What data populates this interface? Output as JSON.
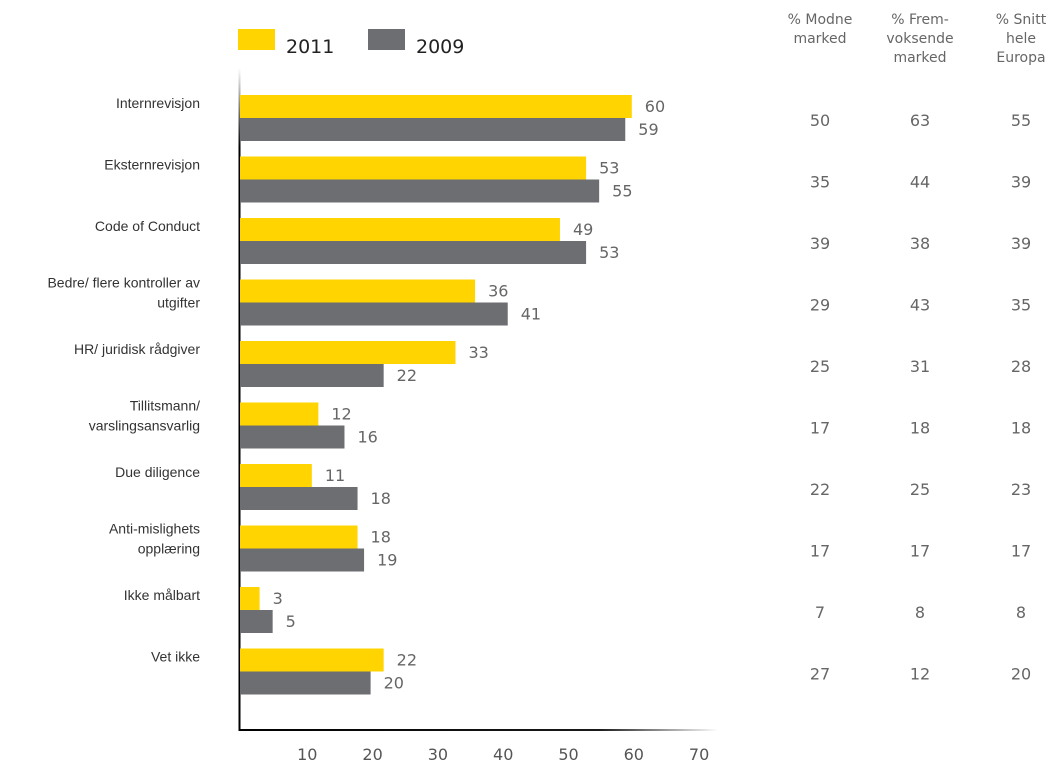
{
  "chart_data": {
    "type": "bar",
    "orientation": "horizontal",
    "categories": [
      [
        "Internrevisjon"
      ],
      [
        "Eksternrevisjon"
      ],
      [
        "Code of Conduct"
      ],
      [
        "Bedre/ flere kontroller av",
        "utgifter"
      ],
      [
        "HR/ juridisk rådgiver"
      ],
      [
        "Tillitsmann/",
        "varslingsansvarlig"
      ],
      [
        "Due diligence"
      ],
      [
        "Anti-mislighets",
        "opplæring"
      ],
      [
        "Ikke målbart"
      ],
      [
        "Vet ikke"
      ]
    ],
    "series": [
      {
        "name": "2011",
        "color": "#FFD400",
        "values": [
          60,
          53,
          49,
          36,
          33,
          12,
          11,
          18,
          3,
          22
        ]
      },
      {
        "name": "2009",
        "color": "#6D6E71",
        "values": [
          59,
          55,
          53,
          41,
          22,
          16,
          18,
          19,
          5,
          20
        ]
      }
    ],
    "xticks": [
      10,
      20,
      30,
      40,
      50,
      60,
      70
    ],
    "xlim": [
      0,
      73
    ],
    "grid": false,
    "legend_position": "top",
    "table": {
      "columns": [
        {
          "header": [
            "% Modne",
            "marked"
          ],
          "values": [
            50,
            35,
            39,
            29,
            25,
            17,
            22,
            17,
            7,
            27
          ]
        },
        {
          "header": [
            "% Frem-",
            "voksende",
            "marked"
          ],
          "values": [
            63,
            44,
            38,
            43,
            31,
            18,
            25,
            17,
            8,
            12
          ]
        },
        {
          "header": [
            "% Snitt",
            "hele",
            "Europa"
          ],
          "values": [
            55,
            39,
            39,
            35,
            28,
            18,
            23,
            17,
            8,
            20
          ]
        }
      ]
    }
  }
}
